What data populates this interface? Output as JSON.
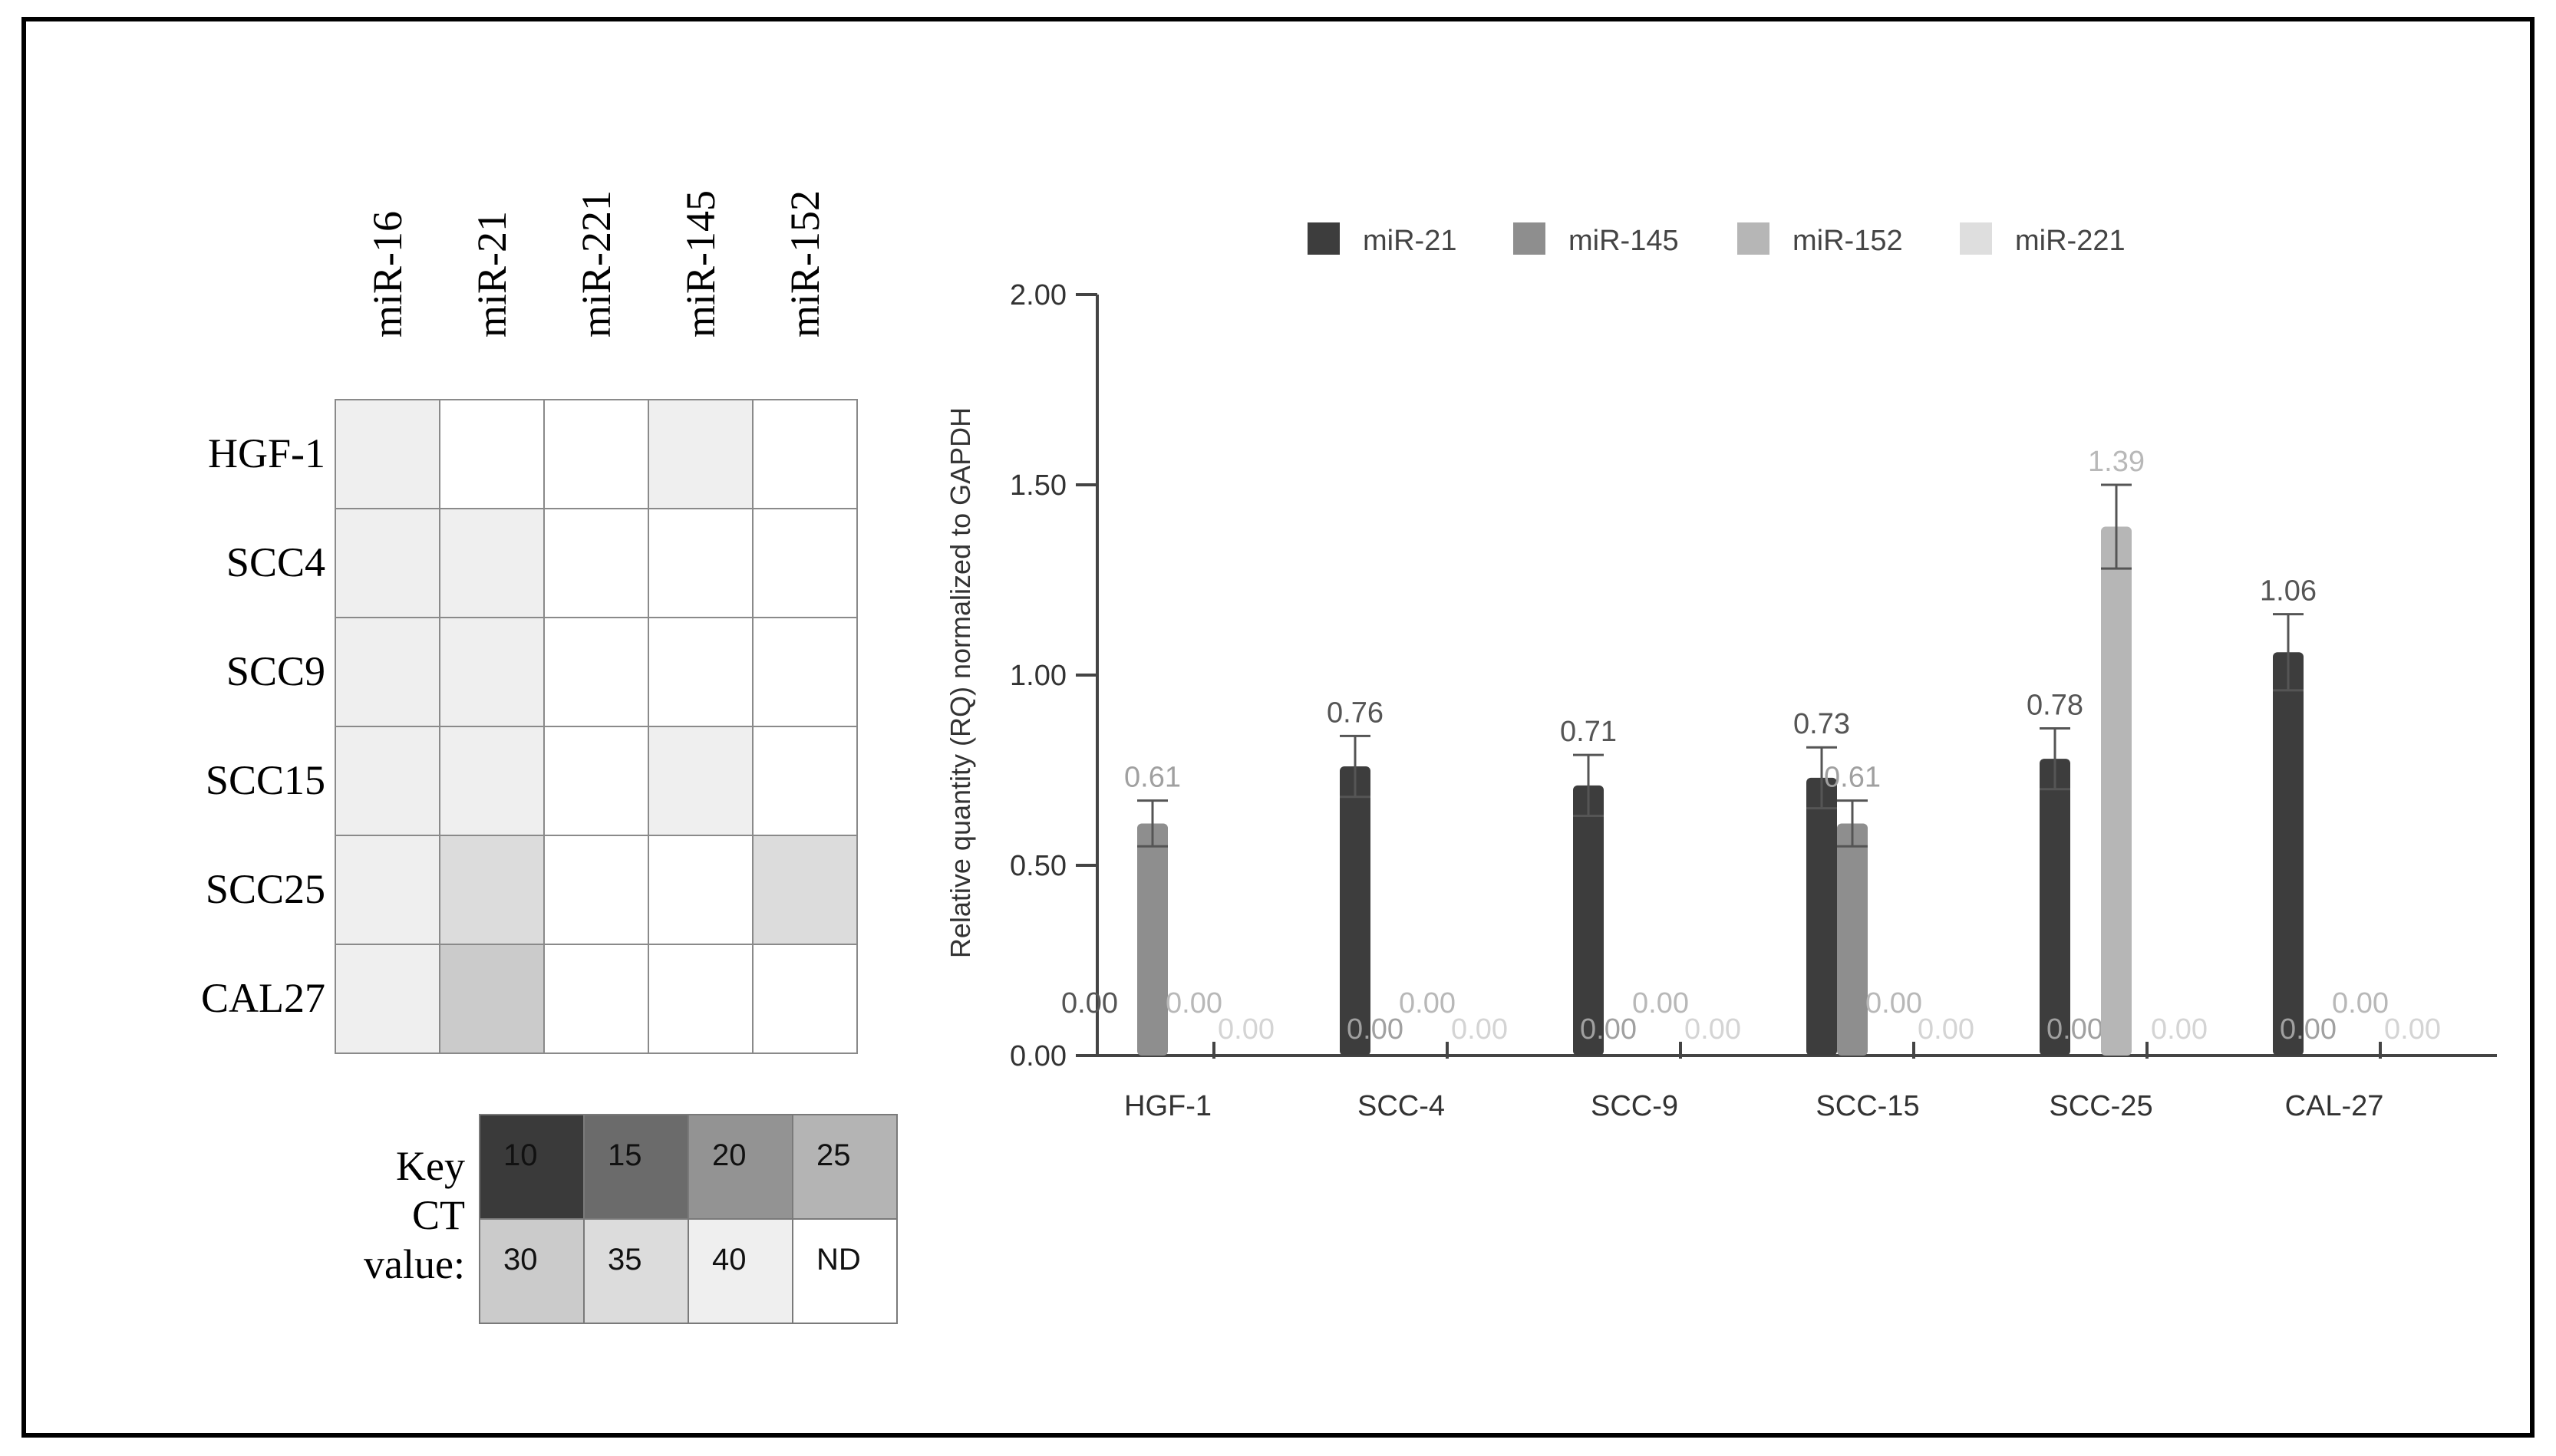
{
  "heatmap": {
    "columns": [
      "miR-16",
      "miR-21",
      "miR-221",
      "miR-145",
      "miR-152"
    ],
    "rows": [
      "HGF-1",
      "SCC4",
      "SCC9",
      "SCC15",
      "SCC25",
      "CAL27"
    ],
    "ct_values": [
      [
        "40",
        "ND",
        "ND",
        "40",
        "ND"
      ],
      [
        "40",
        "40",
        "ND",
        "ND",
        "ND"
      ],
      [
        "40",
        "40",
        "ND",
        "ND",
        "ND"
      ],
      [
        "40",
        "40",
        "ND",
        "40",
        "ND"
      ],
      [
        "40",
        "35",
        "ND",
        "ND",
        "35"
      ],
      [
        "40",
        "30",
        "ND",
        "ND",
        "ND"
      ]
    ]
  },
  "key": {
    "label_line1": "Key",
    "label_line2": "CT",
    "label_line3": "value:",
    "cells": [
      {
        "label": "10",
        "color": "#3a3a3a"
      },
      {
        "label": "15",
        "color": "#6b6b6b"
      },
      {
        "label": "20",
        "color": "#939393"
      },
      {
        "label": "25",
        "color": "#b4b4b4"
      },
      {
        "label": "30",
        "color": "#cbcbcb"
      },
      {
        "label": "35",
        "color": "#dcdcdc"
      },
      {
        "label": "40",
        "color": "#efefef"
      },
      {
        "label": "ND",
        "color": "#ffffff"
      }
    ]
  },
  "chart_data": {
    "type": "bar",
    "categories": [
      "HGF-1",
      "SCC-4",
      "SCC-9",
      "SCC-15",
      "SCC-25",
      "CAL-27"
    ],
    "ylabel": "Relative quantity (RQ) normalized to GAPDH",
    "ylim": [
      0,
      2.0
    ],
    "yticks": [
      "0.00",
      "0.50",
      "1.00",
      "1.50",
      "2.00"
    ],
    "legend_position": "top",
    "series": [
      {
        "name": "miR-21",
        "color": "#3d3d3d",
        "label_color": "#555555",
        "values": [
          0.0,
          0.76,
          0.71,
          0.73,
          0.78,
          1.06
        ],
        "errors": [
          0,
          0.08,
          0.08,
          0.08,
          0.08,
          0.1
        ],
        "labels": [
          "0.00",
          "0.76",
          "0.71",
          "0.73",
          "0.78",
          "1.06"
        ]
      },
      {
        "name": "miR-145",
        "color": "#8e8e8e",
        "label_color": "#a0a0a0",
        "values": [
          0.61,
          0.0,
          0.0,
          0.61,
          0.0,
          0.0
        ],
        "errors": [
          0.06,
          0,
          0,
          0.06,
          0,
          0
        ],
        "labels": [
          "0.61",
          "0.00",
          "0.00",
          "0.61",
          "0.00",
          "0.00"
        ]
      },
      {
        "name": "miR-152",
        "color": "#b6b6b6",
        "label_color": "#b8b8b8",
        "values": [
          0.0,
          0.0,
          0.0,
          0.0,
          1.39,
          0.0
        ],
        "errors": [
          0,
          0,
          0,
          0,
          0.11,
          0
        ],
        "labels": [
          "0.00",
          "0.00",
          "0.00",
          "0.00",
          "1.39",
          "0.00"
        ]
      },
      {
        "name": "miR-221",
        "color": "#dedede",
        "label_color": "#d4d4d4",
        "values": [
          0.0,
          0.0,
          0.0,
          0.0,
          0.0,
          0.0
        ],
        "errors": [
          0,
          0,
          0,
          0,
          0,
          0
        ],
        "labels": [
          "0.00",
          "0.00",
          "0.00",
          "0.00",
          "0.00",
          "0.00"
        ]
      }
    ]
  }
}
